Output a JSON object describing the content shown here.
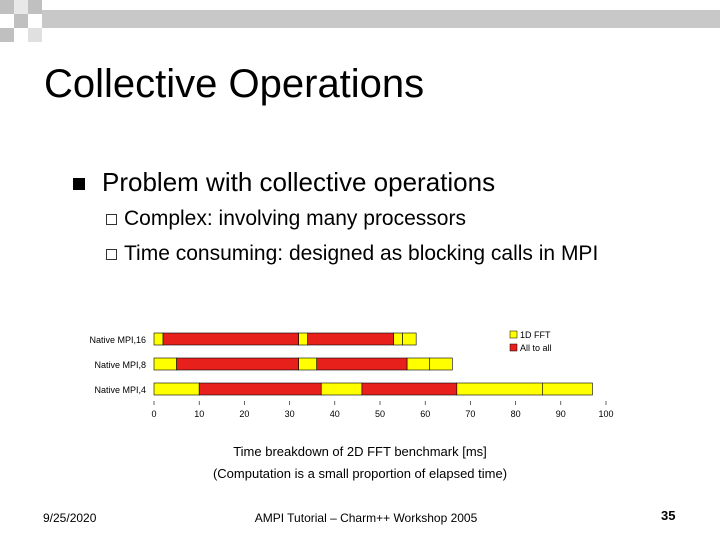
{
  "slide": {
    "title": "Collective Operations",
    "bullet": "Problem with collective operations",
    "sub_bullets": [
      "Complex: involving many processors",
      "Time consuming: designed as blocking calls in MPI"
    ],
    "caption_line1": "Time breakdown of 2D FFT benchmark [ms]",
    "caption_line2": "(Computation is a small proportion of elapsed time)",
    "footer_date": "9/25/2020",
    "footer_center": "AMPI Tutorial – Charm++ Workshop 2005",
    "page_number": "35"
  },
  "colors": {
    "fft": "#ffff00",
    "all_to_all": "#e8201c",
    "deco_gray": "#c0c0c0",
    "deco_dark": "#808080"
  },
  "chart_data": {
    "type": "bar",
    "orientation": "horizontal",
    "stacked": true,
    "categories": [
      "Native MPI,16",
      "Native MPI,8",
      "Native MPI,4"
    ],
    "series": [
      {
        "name": "1D FFT",
        "color": "#ffff00"
      },
      {
        "name": "All to all",
        "color": "#e8201c"
      }
    ],
    "segments": [
      [
        {
          "series": "1D FFT",
          "start": 0,
          "end": 2
        },
        {
          "series": "All to all",
          "start": 2,
          "end": 32
        },
        {
          "series": "1D FFT",
          "start": 32,
          "end": 34
        },
        {
          "series": "All to all",
          "start": 34,
          "end": 53
        },
        {
          "series": "1D FFT",
          "start": 53,
          "end": 55
        },
        {
          "series": "1D FFT",
          "start": 55,
          "end": 58
        }
      ],
      [
        {
          "series": "1D FFT",
          "start": 0,
          "end": 5
        },
        {
          "series": "All to all",
          "start": 5,
          "end": 32
        },
        {
          "series": "1D FFT",
          "start": 32,
          "end": 36
        },
        {
          "series": "All to all",
          "start": 36,
          "end": 56
        },
        {
          "series": "1D FFT",
          "start": 56,
          "end": 61
        },
        {
          "series": "1D FFT",
          "start": 61,
          "end": 66
        }
      ],
      [
        {
          "series": "1D FFT",
          "start": 0,
          "end": 10
        },
        {
          "series": "All to all",
          "start": 10,
          "end": 37
        },
        {
          "series": "1D FFT",
          "start": 37,
          "end": 46
        },
        {
          "series": "All to all",
          "start": 46,
          "end": 67
        },
        {
          "series": "1D FFT",
          "start": 67,
          "end": 86
        },
        {
          "series": "1D FFT",
          "start": 86,
          "end": 97
        }
      ]
    ],
    "x_ticks": [
      0,
      10,
      20,
      30,
      40,
      50,
      60,
      70,
      80,
      90,
      100
    ],
    "xlim": [
      0,
      100
    ],
    "legend_position": "top-right",
    "grid": false
  }
}
